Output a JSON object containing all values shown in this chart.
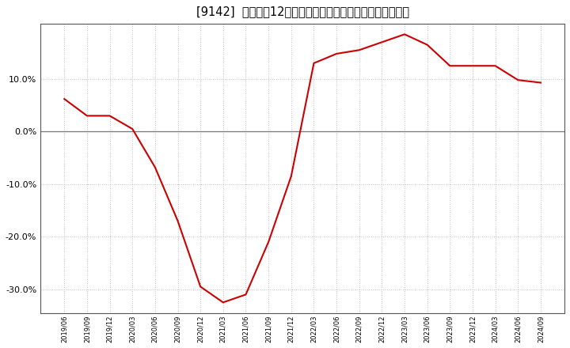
{
  "title": "[9142]  売上高の12か月移動合計の対前年同期増減率の推移",
  "line_color": "#cc0000",
  "background_color": "#ffffff",
  "plot_bg_color": "#ffffff",
  "grid_color": "#aaaaaa",
  "ylim": [
    -0.345,
    0.205
  ],
  "yticks": [
    -0.3,
    -0.2,
    -0.1,
    0.0,
    0.1
  ],
  "dates": [
    "2019/06",
    "2019/09",
    "2019/12",
    "2020/03",
    "2020/06",
    "2020/09",
    "2020/12",
    "2021/03",
    "2021/06",
    "2021/09",
    "2021/12",
    "2022/03",
    "2022/06",
    "2022/09",
    "2022/12",
    "2023/03",
    "2023/06",
    "2023/09",
    "2023/12",
    "2024/03",
    "2024/06",
    "2024/09"
  ],
  "values": [
    0.062,
    0.03,
    0.03,
    0.005,
    -0.068,
    -0.17,
    -0.295,
    -0.325,
    -0.31,
    -0.21,
    -0.085,
    0.13,
    0.148,
    0.155,
    0.17,
    0.185,
    0.165,
    0.125,
    0.125,
    0.125,
    0.098,
    0.093
  ]
}
